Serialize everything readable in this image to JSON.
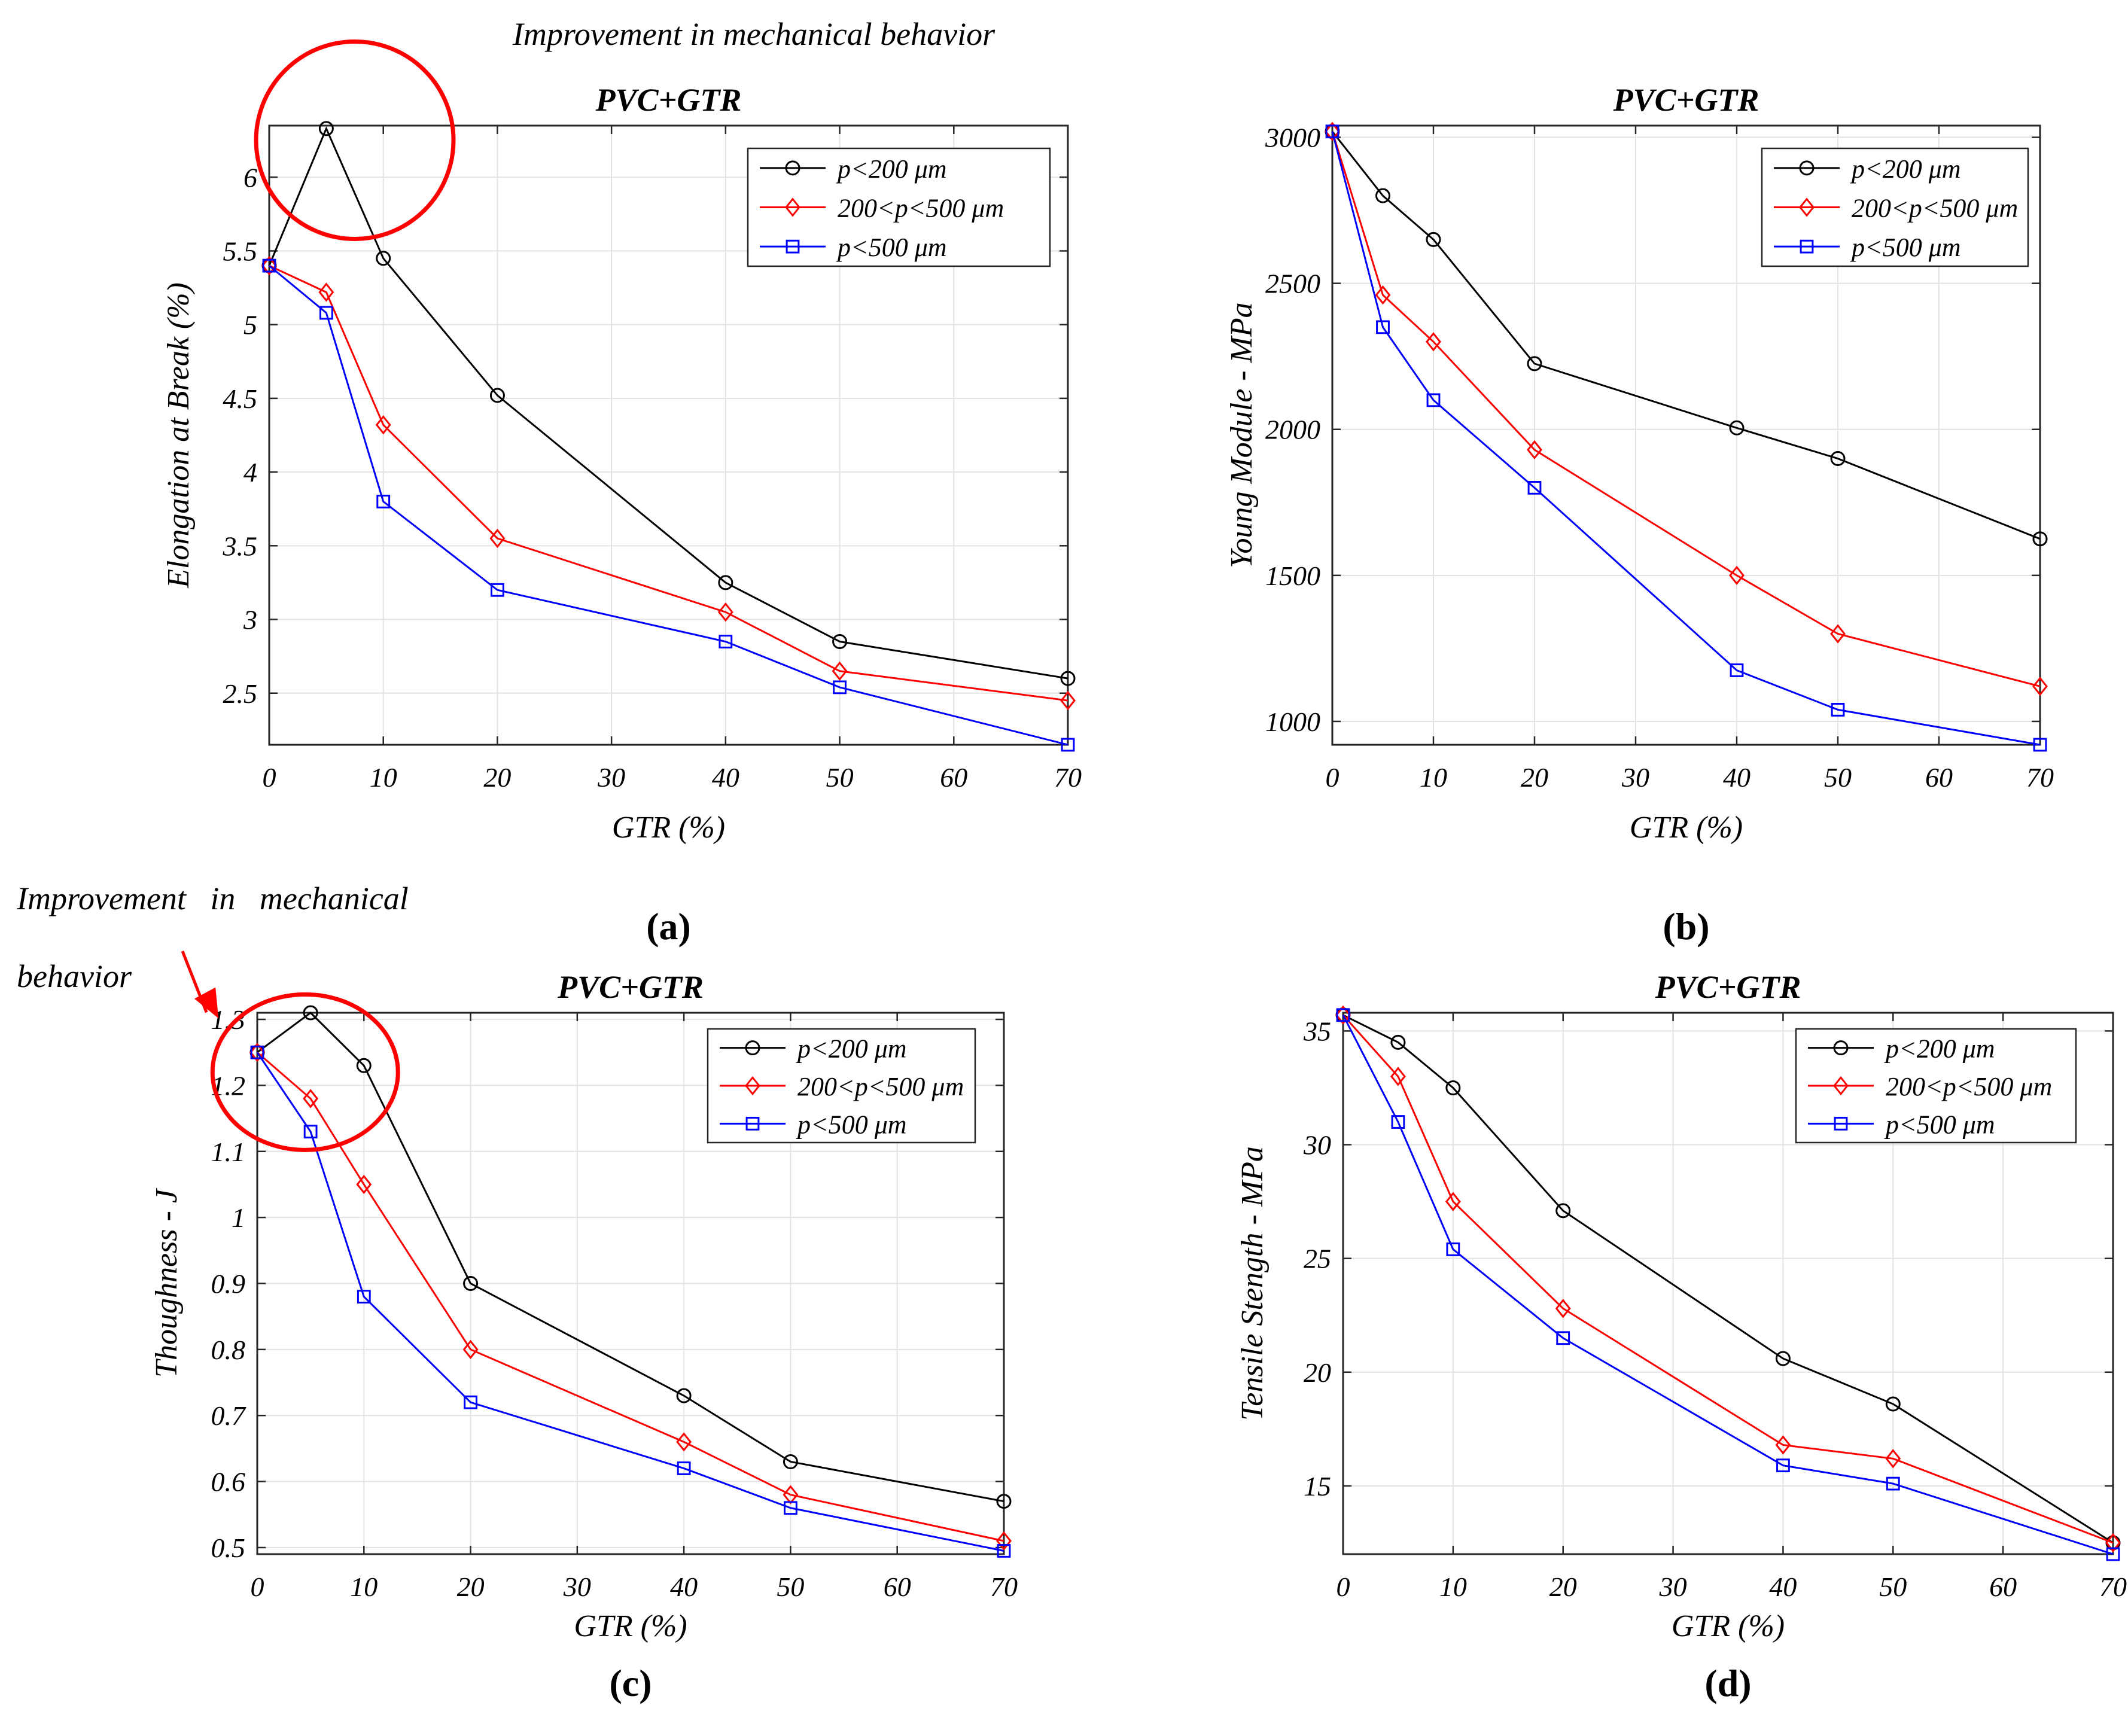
{
  "annotations": {
    "top": "Improvement in mechanical behavior",
    "left_line1": "Improvement   in   mechanical",
    "left_line2": "behavior"
  },
  "colors": {
    "series": [
      "#000000",
      "#ff0000",
      "#0000ff"
    ],
    "highlight": "#ff0000",
    "grid": "#e3e3e3",
    "axes": "#262626"
  },
  "chart_data": [
    {
      "panel_label": "(a)",
      "type": "line",
      "title": "PVC+GTR",
      "xlabel": "GTR (%)",
      "ylabel": "Elongation at Break (%)",
      "xlim": [
        0,
        70
      ],
      "ylim": [
        2.15,
        6.35
      ],
      "xticks": [
        0,
        10,
        20,
        30,
        40,
        50,
        60,
        70
      ],
      "yticks": [
        2.5,
        3,
        3.5,
        4,
        4.5,
        5,
        5.5,
        6
      ],
      "x": [
        0,
        5,
        10,
        20,
        40,
        50,
        70
      ],
      "grid": true,
      "legend_position": "top-right",
      "series": [
        {
          "name": "p<200 μm",
          "marker": "circle",
          "values": [
            5.4,
            6.33,
            5.45,
            4.52,
            3.25,
            2.85,
            2.6
          ]
        },
        {
          "name": "200<p<500 μm",
          "marker": "diamond",
          "values": [
            5.4,
            5.22,
            4.32,
            3.55,
            3.05,
            2.65,
            2.45
          ]
        },
        {
          "name": "p<500 μm",
          "marker": "square",
          "values": [
            5.4,
            5.08,
            3.8,
            3.2,
            2.85,
            2.54,
            2.15
          ]
        }
      ]
    },
    {
      "panel_label": "(b)",
      "type": "line",
      "title": "PVC+GTR",
      "xlabel": "GTR (%)",
      "ylabel": "Young Module - MPa",
      "xlim": [
        0,
        70
      ],
      "ylim": [
        920,
        3040
      ],
      "xticks": [
        0,
        10,
        20,
        30,
        40,
        50,
        60,
        70
      ],
      "yticks": [
        1000,
        1500,
        2000,
        2500,
        3000
      ],
      "x": [
        0,
        5,
        10,
        20,
        40,
        50,
        70
      ],
      "grid": true,
      "legend_position": "top-right",
      "series": [
        {
          "name": "p<200 μm",
          "marker": "circle",
          "values": [
            3020,
            2800,
            2650,
            2225,
            2005,
            1900,
            1625
          ]
        },
        {
          "name": "200<p<500 μm",
          "marker": "diamond",
          "values": [
            3020,
            2460,
            2300,
            1930,
            1500,
            1300,
            1120
          ]
        },
        {
          "name": "p<500 μm",
          "marker": "square",
          "values": [
            3020,
            2350,
            2100,
            1800,
            1175,
            1040,
            920
          ]
        }
      ]
    },
    {
      "panel_label": "(c)",
      "type": "line",
      "title": "PVC+GTR",
      "xlabel": "GTR (%)",
      "ylabel": "Thoughness - J",
      "xlim": [
        0,
        70
      ],
      "ylim": [
        0.49,
        1.31
      ],
      "xticks": [
        0,
        10,
        20,
        30,
        40,
        50,
        60,
        70
      ],
      "yticks": [
        0.5,
        0.6,
        0.7,
        0.8,
        0.9,
        1,
        1.1,
        1.2,
        1.3
      ],
      "x": [
        0,
        5,
        10,
        20,
        40,
        50,
        70
      ],
      "grid": true,
      "legend_position": "top-right",
      "series": [
        {
          "name": "p<200 μm",
          "marker": "circle",
          "values": [
            1.25,
            1.31,
            1.23,
            0.9,
            0.73,
            0.63,
            0.57
          ]
        },
        {
          "name": "200<p<500 μm",
          "marker": "diamond",
          "values": [
            1.25,
            1.18,
            1.05,
            0.8,
            0.66,
            0.58,
            0.51
          ]
        },
        {
          "name": "p<500 μm",
          "marker": "square",
          "values": [
            1.25,
            1.13,
            0.88,
            0.72,
            0.62,
            0.56,
            0.495
          ]
        }
      ]
    },
    {
      "panel_label": "(d)",
      "type": "line",
      "title": "PVC+GTR",
      "xlabel": "GTR (%)",
      "ylabel": "Tensile Stength - MPa",
      "xlim": [
        0,
        70
      ],
      "ylim": [
        12,
        35.8
      ],
      "xticks": [
        0,
        10,
        20,
        30,
        40,
        50,
        60,
        70
      ],
      "yticks": [
        15,
        20,
        25,
        30,
        35
      ],
      "x": [
        0,
        5,
        10,
        20,
        40,
        50,
        70
      ],
      "grid": true,
      "legend_position": "top-right",
      "series": [
        {
          "name": "p<200 μm",
          "marker": "circle",
          "values": [
            35.7,
            34.5,
            32.5,
            27.1,
            20.6,
            18.6,
            12.5
          ]
        },
        {
          "name": "200<p<500 μm",
          "marker": "diamond",
          "values": [
            35.7,
            33.0,
            27.5,
            22.8,
            16.8,
            16.2,
            12.5
          ]
        },
        {
          "name": "p<500 μm",
          "marker": "square",
          "values": [
            35.7,
            31.0,
            25.4,
            21.5,
            15.9,
            15.1,
            12.0
          ]
        }
      ]
    }
  ]
}
